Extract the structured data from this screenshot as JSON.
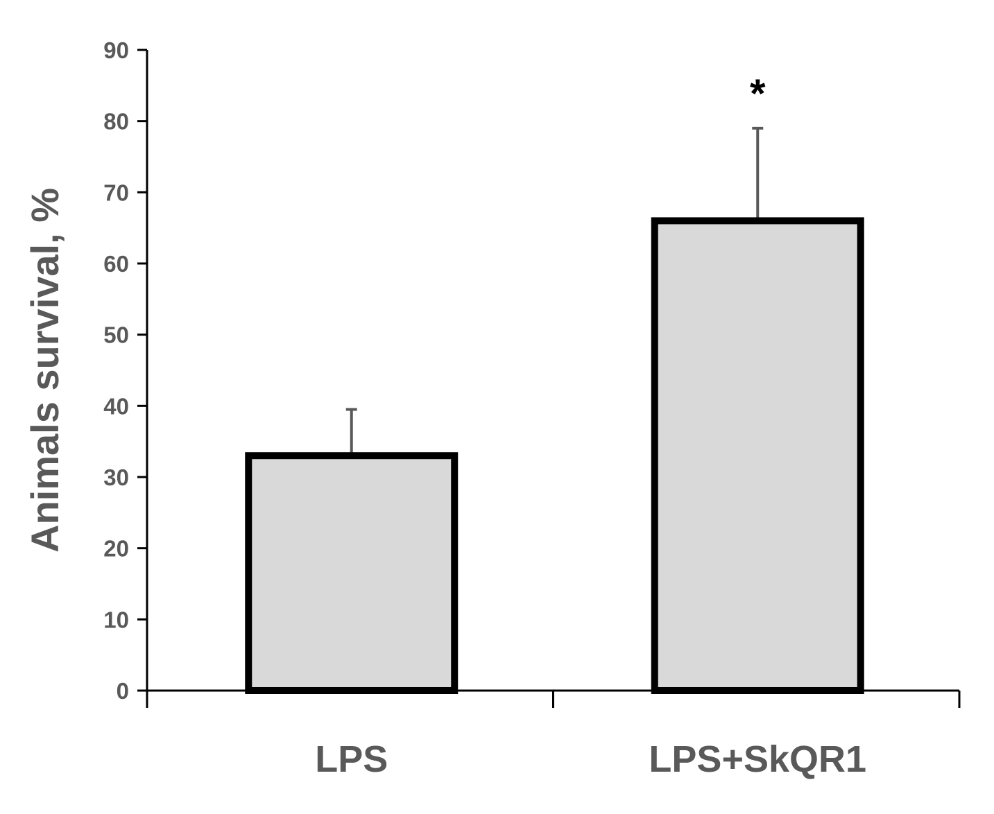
{
  "chart_data": {
    "type": "bar",
    "title": "",
    "xlabel": "",
    "ylabel": "Animals survival, %",
    "ylim": [
      0,
      90
    ],
    "yticks": [
      "0",
      "10",
      "20",
      "30",
      "40",
      "50",
      "60",
      "70",
      "80",
      "90"
    ],
    "categories": [
      "LPS",
      "LPS+SkQR1"
    ],
    "values": [
      33,
      66
    ],
    "error_upper": [
      6.5,
      13
    ],
    "annotations": [
      "",
      "*"
    ],
    "grid": false,
    "legend": "none",
    "colors": {
      "bar_fill": "#d9d9d9",
      "bar_stroke": "#000000",
      "axis": "#000000",
      "error_bar": "#595959",
      "text": "#595959"
    }
  }
}
